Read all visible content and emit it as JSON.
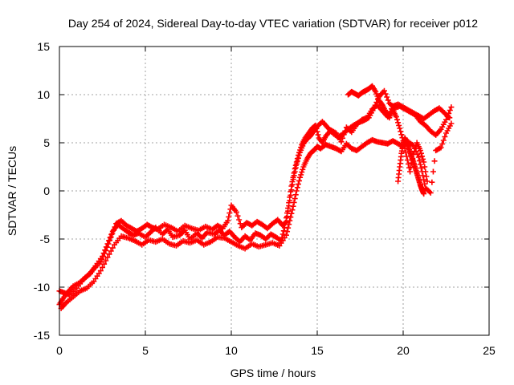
{
  "chart_data": {
    "type": "scatter",
    "title": "Day 254 of 2024, Sidereal Day-to-day VTEC variation (SDTVAR) for receiver p012",
    "xlabel": "GPS time / hours",
    "ylabel": "SDTVAR / TECUs",
    "xlim": [
      0,
      25
    ],
    "ylim": [
      -15,
      15
    ],
    "xticks": [
      "0",
      "5",
      "10",
      "15",
      "20",
      "25"
    ],
    "yticks": [
      "15",
      "10",
      "5",
      "0",
      "-5",
      "-10",
      "-15"
    ],
    "grid": true,
    "series_color": "#ff0000",
    "marker": "plus",
    "series": [
      {
        "x": [
          0.0,
          0.2,
          0.5,
          0.8,
          1.2,
          1.5,
          1.8,
          2.1,
          2.5,
          2.8,
          3.1,
          3.4,
          3.7,
          4.0,
          4.3,
          4.6,
          5.0,
          5.3,
          5.6,
          6.0,
          6.3,
          6.6,
          7.0,
          7.3,
          7.6,
          8.0,
          8.3,
          8.6,
          9.0,
          9.3,
          9.6,
          9.9,
          10.2,
          10.5,
          10.8,
          11.1,
          11.4,
          11.7,
          12.0,
          12.3,
          12.6,
          12.9,
          13.1,
          13.3,
          13.5,
          13.7,
          13.9,
          14.1,
          14.3,
          14.5,
          14.7,
          14.9,
          15.1,
          15.3,
          15.5,
          15.8,
          16.1,
          16.4,
          16.7,
          17.0,
          17.3,
          17.6,
          17.9,
          18.2,
          18.5,
          18.8,
          19.1,
          19.4,
          19.7,
          20.0,
          20.3,
          20.6,
          20.9,
          21.2,
          21.5,
          21.8,
          22.1,
          22.4,
          22.7
        ],
        "y": [
          -11.8,
          -11.2,
          -10.5,
          -9.9,
          -9.5,
          -9.0,
          -8.6,
          -7.8,
          -6.8,
          -5.5,
          -4.2,
          -3.5,
          -3.9,
          -4.3,
          -4.6,
          -4.4,
          -4.8,
          -4.3,
          -3.8,
          -4.5,
          -4.0,
          -4.8,
          -4.6,
          -4.1,
          -5.0,
          -4.4,
          -4.9,
          -4.3,
          -4.5,
          -4.1,
          -4.6,
          -4.2,
          -4.8,
          -5.3,
          -4.7,
          -5.1,
          -4.4,
          -4.6,
          -5.0,
          -4.5,
          -4.8,
          -5.2,
          -3.8,
          -1.8,
          0.5,
          2.3,
          3.7,
          4.8,
          5.5,
          6.0,
          6.5,
          6.8,
          5.5,
          5.0,
          5.7,
          6.3,
          6.0,
          5.1,
          6.6,
          6.1,
          6.9,
          7.4,
          7.6,
          8.5,
          8.9,
          8.3,
          7.7,
          8.8,
          9.0,
          8.7,
          8.4,
          8.1,
          7.8,
          7.5,
          7.9,
          8.3,
          8.6,
          8.1,
          7.6
        ]
      },
      {
        "x": [
          0.1,
          0.4,
          0.8,
          1.2,
          1.6,
          2.0,
          2.4,
          2.8,
          3.2,
          3.6,
          4.0,
          4.4,
          4.8,
          5.2,
          5.6,
          6.0,
          6.4,
          6.8,
          7.2,
          7.6,
          8.0,
          8.4,
          8.8,
          9.2,
          9.6,
          10.0,
          10.4,
          10.8,
          11.2,
          11.6,
          12.0,
          12.4,
          12.8,
          13.2,
          13.4,
          13.6,
          13.8,
          14.0,
          14.2,
          14.4,
          14.6,
          14.8,
          15.0,
          15.2,
          15.5,
          15.8,
          16.1,
          16.4,
          16.7,
          17.0,
          17.3,
          17.6,
          17.9,
          18.2,
          18.5,
          18.8,
          19.1,
          19.4,
          19.7,
          20.0,
          20.3,
          20.6,
          20.9,
          21.1,
          21.3,
          21.6,
          21.9,
          22.2,
          22.5,
          22.8
        ],
        "y": [
          -12.2,
          -11.6,
          -11.0,
          -10.4,
          -10.1,
          -9.4,
          -8.3,
          -6.9,
          -5.6,
          -4.7,
          -4.9,
          -5.2,
          -5.6,
          -5.1,
          -5.3,
          -5.0,
          -5.5,
          -5.7,
          -5.2,
          -5.4,
          -5.1,
          -5.6,
          -5.3,
          -4.8,
          -4.9,
          -5.3,
          -5.7,
          -6.0,
          -5.5,
          -5.8,
          -5.6,
          -5.4,
          -5.7,
          -4.6,
          -3.1,
          -1.6,
          0.0,
          1.4,
          2.5,
          3.3,
          3.9,
          4.2,
          4.6,
          4.4,
          4.8,
          4.6,
          4.4,
          4.1,
          4.9,
          4.4,
          4.2,
          4.6,
          5.0,
          5.3,
          5.1,
          5.0,
          4.9,
          5.2,
          4.9,
          4.6,
          5.1,
          4.7,
          3.5,
          2.0,
          0.3,
          -0.2,
          4.2,
          4.5,
          6.0,
          7.0
        ]
      },
      {
        "x": [
          0.0,
          0.3,
          0.6,
          1.0,
          1.4,
          1.7,
          2.0,
          2.4,
          2.7,
          3.0,
          3.3,
          3.6,
          3.9,
          4.2,
          4.5,
          4.8,
          5.1,
          5.4,
          5.7,
          6.1,
          6.5,
          6.9,
          7.3,
          7.7,
          8.1,
          8.5,
          8.9,
          9.2,
          9.5,
          9.8,
          10.0,
          10.3,
          10.6,
          10.9,
          11.2,
          11.5,
          11.8,
          12.1,
          12.4,
          12.7,
          13.0,
          13.2,
          13.4,
          13.6,
          13.8,
          14.0,
          14.2,
          14.4,
          14.6,
          14.8,
          15.0,
          15.3,
          15.6,
          15.9,
          16.2,
          16.5,
          16.8,
          17.1,
          17.4,
          17.7,
          18.0,
          18.3,
          18.6,
          18.9,
          19.2,
          19.5,
          19.8,
          20.1,
          20.4,
          20.7,
          21.0,
          21.3,
          21.6,
          21.9,
          22.2,
          22.5,
          22.8
        ],
        "y": [
          -10.4,
          -10.6,
          -10.8,
          -10.1,
          -9.2,
          -8.7,
          -8.1,
          -7.4,
          -6.2,
          -4.8,
          -3.4,
          -3.1,
          -3.6,
          -3.9,
          -4.2,
          -3.9,
          -3.5,
          -3.8,
          -4.0,
          -3.5,
          -3.8,
          -4.2,
          -3.6,
          -3.9,
          -4.1,
          -3.7,
          -4.0,
          -3.6,
          -3.9,
          -3.1,
          -1.5,
          -2.2,
          -3.8,
          -3.3,
          -3.6,
          -3.2,
          -3.5,
          -3.9,
          -3.4,
          -3.0,
          -3.6,
          -3.2,
          -1.0,
          1.2,
          2.8,
          4.0,
          4.9,
          5.4,
          5.7,
          6.2,
          6.7,
          7.2,
          6.6,
          6.0,
          5.6,
          5.9,
          6.4,
          6.8,
          7.1,
          7.3,
          7.6,
          8.6,
          9.8,
          10.4,
          9.1,
          8.6,
          8.8,
          8.5,
          8.2,
          7.9,
          7.2,
          6.8,
          6.2,
          5.8,
          6.4,
          7.4,
          8.7
        ]
      },
      {
        "x": [
          16.8,
          17.0,
          17.2,
          17.4,
          17.6,
          17.8,
          18.0,
          18.2,
          18.4,
          18.6,
          18.8,
          19.0,
          19.2,
          19.4,
          19.6,
          19.8,
          20.0,
          20.2,
          20.4,
          20.6,
          20.8,
          21.0,
          21.2,
          21.4
        ],
        "y": [
          10.0,
          10.3,
          10.1,
          9.9,
          10.2,
          10.4,
          10.6,
          10.9,
          10.3,
          9.4,
          8.9,
          8.2,
          7.6,
          8.4,
          7.7,
          6.5,
          5.2,
          3.6,
          2.0,
          3.8,
          5.0,
          4.2,
          3.0,
          1.0
        ]
      },
      {
        "x": [
          19.7,
          19.8,
          19.9,
          20.0,
          20.1,
          20.2,
          20.3,
          20.4,
          20.5,
          20.6,
          20.7,
          20.8,
          20.9,
          21.0,
          21.1,
          21.2
        ],
        "y": [
          1.0,
          2.5,
          3.9,
          4.9,
          5.5,
          5.1,
          4.6,
          4.0,
          3.5,
          3.0,
          2.4,
          1.8,
          1.2,
          0.6,
          0.1,
          -0.3
        ]
      }
    ]
  }
}
